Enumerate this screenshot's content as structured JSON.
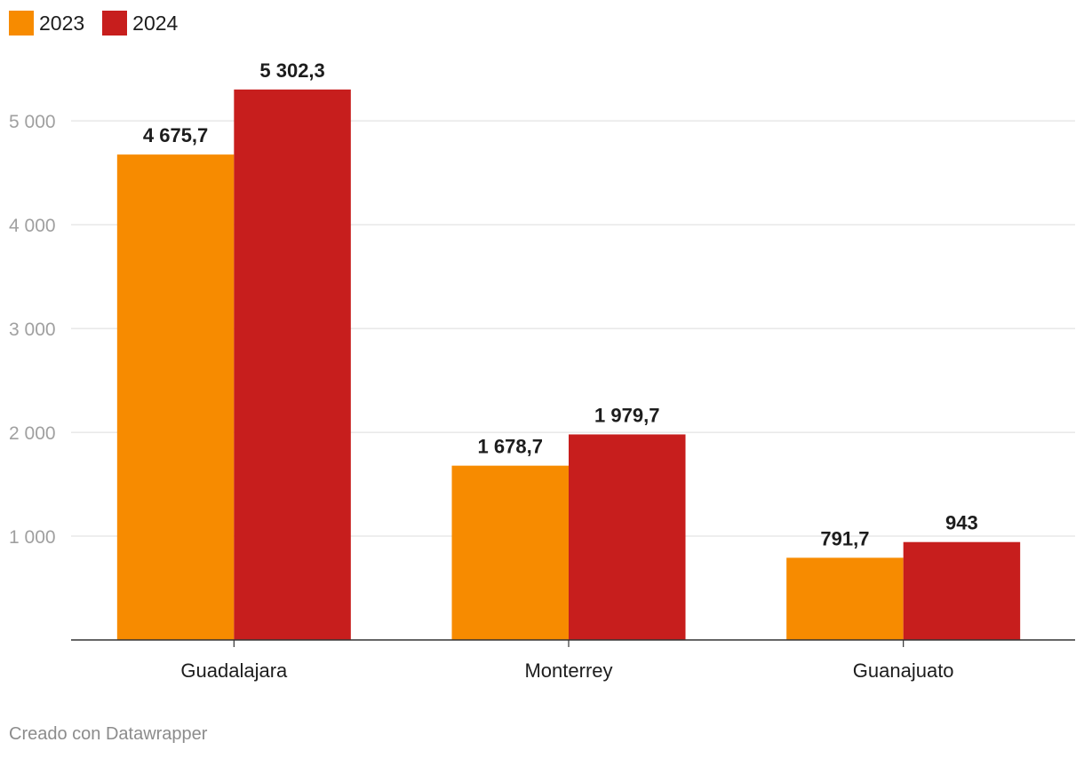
{
  "legend": [
    {
      "label": "2023",
      "color": "#f78b00"
    },
    {
      "label": "2024",
      "color": "#c71e1d"
    }
  ],
  "chart_data": {
    "type": "bar",
    "categories": [
      "Guadalajara",
      "Monterrey",
      "Guanajuato"
    ],
    "series": [
      {
        "name": "2023",
        "values": [
          4675.7,
          1678.7,
          791.7
        ],
        "labels": [
          "4 675,7",
          "1 678,7",
          "791,7"
        ],
        "color": "#f78b00"
      },
      {
        "name": "2024",
        "values": [
          5302.3,
          1979.7,
          943
        ],
        "labels": [
          "5 302,3",
          "1 979,7",
          "943"
        ],
        "color": "#c71e1d"
      }
    ],
    "yticks": [
      1000,
      2000,
      3000,
      4000,
      5000
    ],
    "ytick_labels": [
      "1 000",
      "2 000",
      "3 000",
      "4 000",
      "5 000"
    ],
    "ylim": [
      0,
      5600
    ],
    "title": "",
    "xlabel": "",
    "ylabel": ""
  },
  "footer": "Creado con Datawrapper"
}
